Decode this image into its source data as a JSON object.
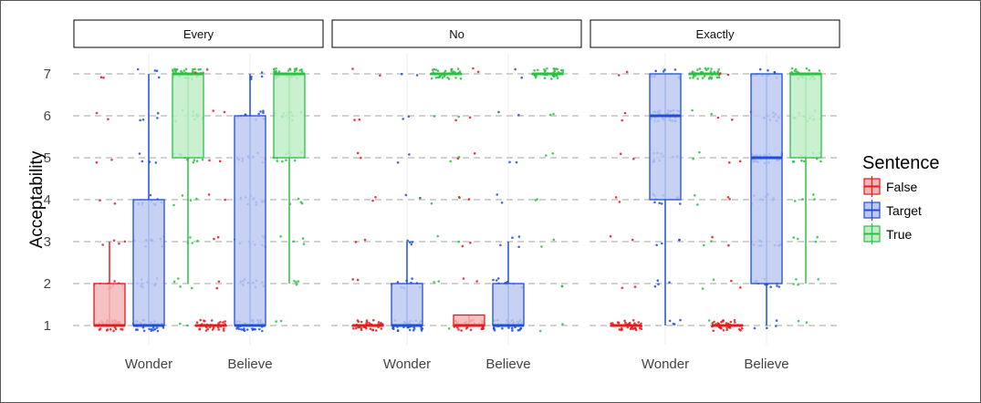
{
  "chart_data": {
    "type": "boxplot",
    "ylabel": "Acceptability",
    "ylim": [
      0.6,
      7.4
    ],
    "y_ticks": [
      "1",
      "2",
      "3",
      "4",
      "5",
      "6",
      "7"
    ],
    "facets": [
      {
        "label": "Every",
        "categories": [
          {
            "label": "Wonder",
            "boxes": [
              {
                "series": "False",
                "q1": 1,
                "median": 1,
                "q3": 2,
                "whisker_low": 1,
                "whisker_high": 3
              },
              {
                "series": "Target",
                "q1": 1,
                "median": 1,
                "q3": 4,
                "whisker_low": 1,
                "whisker_high": 7
              },
              {
                "series": "True",
                "q1": 5,
                "median": 7,
                "q3": 7,
                "whisker_low": 2,
                "whisker_high": 7
              }
            ]
          },
          {
            "label": "Believe",
            "boxes": [
              {
                "series": "False",
                "q1": 1,
                "median": 1,
                "q3": 1,
                "whisker_low": 1,
                "whisker_high": 1
              },
              {
                "series": "Target",
                "q1": 1,
                "median": 1,
                "q3": 6,
                "whisker_low": 1,
                "whisker_high": 7
              },
              {
                "series": "True",
                "q1": 5,
                "median": 7,
                "q3": 7,
                "whisker_low": 2,
                "whisker_high": 7
              }
            ]
          }
        ]
      },
      {
        "label": "No",
        "categories": [
          {
            "label": "Wonder",
            "boxes": [
              {
                "series": "False",
                "q1": 1,
                "median": 1,
                "q3": 1,
                "whisker_low": 1,
                "whisker_high": 1
              },
              {
                "series": "Target",
                "q1": 1,
                "median": 1,
                "q3": 2,
                "whisker_low": 1,
                "whisker_high": 3
              },
              {
                "series": "True",
                "q1": 7,
                "median": 7,
                "q3": 7,
                "whisker_low": 7,
                "whisker_high": 7
              }
            ]
          },
          {
            "label": "Believe",
            "boxes": [
              {
                "series": "False",
                "q1": 1,
                "median": 1,
                "q3": 1.25,
                "whisker_low": 1,
                "whisker_high": 1.25
              },
              {
                "series": "Target",
                "q1": 1,
                "median": 1,
                "q3": 2,
                "whisker_low": 1,
                "whisker_high": 3
              },
              {
                "series": "True",
                "q1": 7,
                "median": 7,
                "q3": 7,
                "whisker_low": 7,
                "whisker_high": 7
              }
            ]
          }
        ]
      },
      {
        "label": "Exactly",
        "categories": [
          {
            "label": "Wonder",
            "boxes": [
              {
                "series": "False",
                "q1": 1,
                "median": 1,
                "q3": 1,
                "whisker_low": 1,
                "whisker_high": 1
              },
              {
                "series": "Target",
                "q1": 4,
                "median": 6,
                "q3": 7,
                "whisker_low": 1,
                "whisker_high": 7
              },
              {
                "series": "True",
                "q1": 7,
                "median": 7,
                "q3": 7,
                "whisker_low": 7,
                "whisker_high": 7
              }
            ]
          },
          {
            "label": "Believe",
            "boxes": [
              {
                "series": "False",
                "q1": 1,
                "median": 1,
                "q3": 1,
                "whisker_low": 1,
                "whisker_high": 1
              },
              {
                "series": "Target",
                "q1": 2,
                "median": 5,
                "q3": 7,
                "whisker_low": 1,
                "whisker_high": 7
              },
              {
                "series": "True",
                "q1": 5,
                "median": 7,
                "q3": 7,
                "whisker_low": 2,
                "whisker_high": 7
              }
            ]
          }
        ]
      }
    ],
    "legend": {
      "title": "Sentence",
      "placement": "right",
      "items": [
        {
          "label": "False",
          "color": "#E41A1C",
          "fill": "#F4B6B7"
        },
        {
          "label": "Target",
          "color": "#1F4FD9",
          "fill": "#BCC9F2"
        },
        {
          "label": "True",
          "color": "#2BC043",
          "fill": "#C0EDC7"
        }
      ]
    },
    "grid": true
  }
}
